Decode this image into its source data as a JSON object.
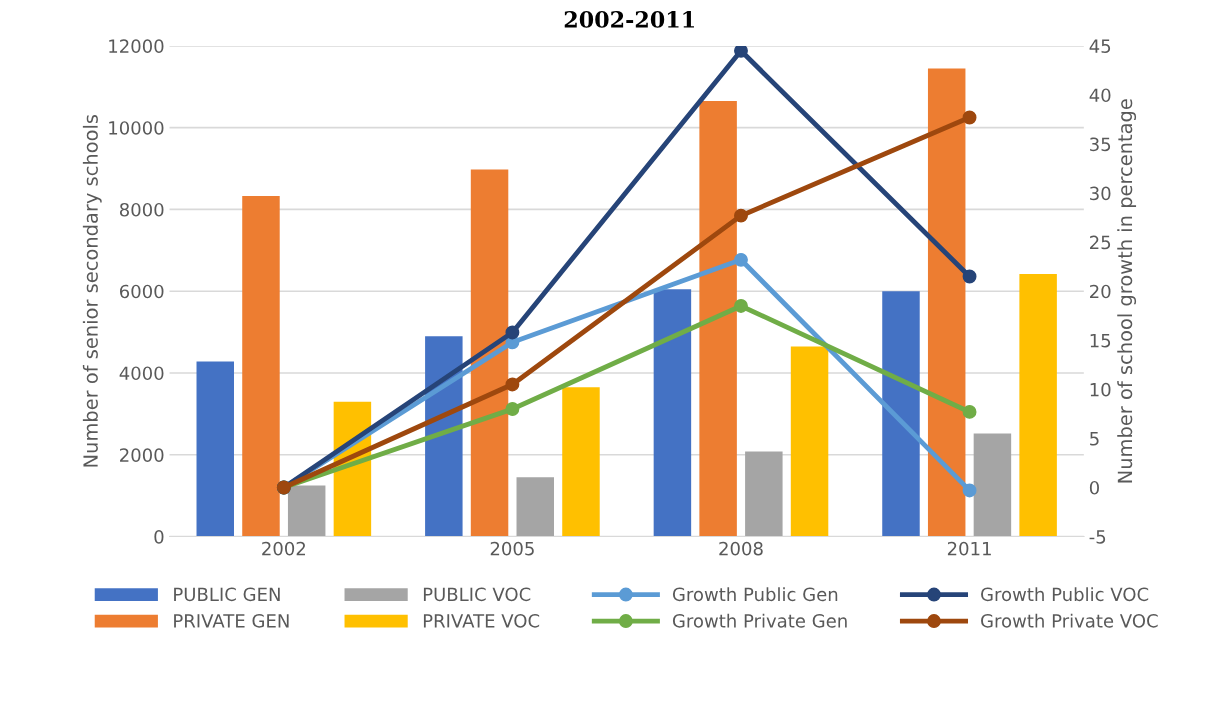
{
  "chart_data": {
    "type": "bar",
    "title": "2002-2011",
    "categories": [
      "2002",
      "2005",
      "2008",
      "2011"
    ],
    "ylabel": "Number of senior secondary schools",
    "y2label": "Number of school growth in percentage",
    "ylim": [
      0,
      12000
    ],
    "yticks": [
      0,
      2000,
      4000,
      6000,
      8000,
      10000,
      12000
    ],
    "y2lim": [
      -5,
      45
    ],
    "y2ticks": [
      -5,
      0,
      5,
      10,
      15,
      20,
      25,
      30,
      35,
      40,
      45
    ],
    "grid": "y",
    "legend": "bottom",
    "marker": "circle",
    "series": [
      {
        "name": "PUBLIC GEN",
        "color": "#4472c4",
        "values": [
          4280,
          4900,
          6050,
          6000
        ]
      },
      {
        "name": "PRIVATE GEN",
        "color": "#ed7d31",
        "values": [
          8330,
          8980,
          10650,
          11450
        ]
      },
      {
        "name": "PUBLIC VOC",
        "color": "#a5a5a5",
        "values": [
          1250,
          1450,
          2080,
          2520
        ]
      },
      {
        "name": "PRIVATE VOC",
        "color": "#ffc000",
        "values": [
          3300,
          3650,
          4650,
          6420
        ]
      },
      {
        "name": "Growth Public Gen",
        "type": "line",
        "axis": "y2",
        "color": "#5b9bd5",
        "values": [
          0,
          14.8,
          23.2,
          -0.3
        ]
      },
      {
        "name": "Growth Private Gen",
        "type": "line",
        "axis": "y2",
        "color": "#70ad47",
        "values": [
          0,
          8,
          18.5,
          7.7
        ]
      },
      {
        "name": "Growth Public VOC",
        "type": "line",
        "axis": "y2",
        "color": "#264478",
        "values": [
          0,
          15.8,
          44.5,
          21.5
        ]
      },
      {
        "name": "Growth Private VOC",
        "type": "line",
        "axis": "y2",
        "color": "#9e480e",
        "values": [
          0,
          10.5,
          27.7,
          37.7
        ]
      }
    ]
  }
}
